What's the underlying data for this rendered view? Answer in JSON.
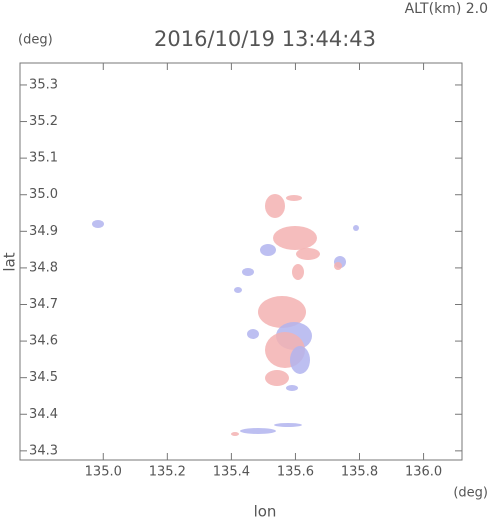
{
  "chart_data": {
    "type": "radar-map",
    "title": "2016/10/19 13:44:43",
    "subtitle": "ALT(km) 2.0",
    "y_unit": "(deg)",
    "x_unit": "(deg)",
    "x_label": "lon",
    "y_label": "lat",
    "xlim": [
      134.74,
      136.12
    ],
    "ylim": [
      34.275,
      35.36
    ],
    "xticks": [
      {
        "value": 135,
        "label": "135.0"
      },
      135.2,
      135.4,
      135.6,
      135.8,
      {
        "value": 136,
        "label": "136.0"
      }
    ],
    "yticks": [
      34.3,
      34.4,
      34.5,
      34.6,
      34.7,
      34.8,
      34.9,
      {
        "value": 35,
        "label": "35.0"
      },
      35.1,
      35.2,
      35.3
    ]
  }
}
